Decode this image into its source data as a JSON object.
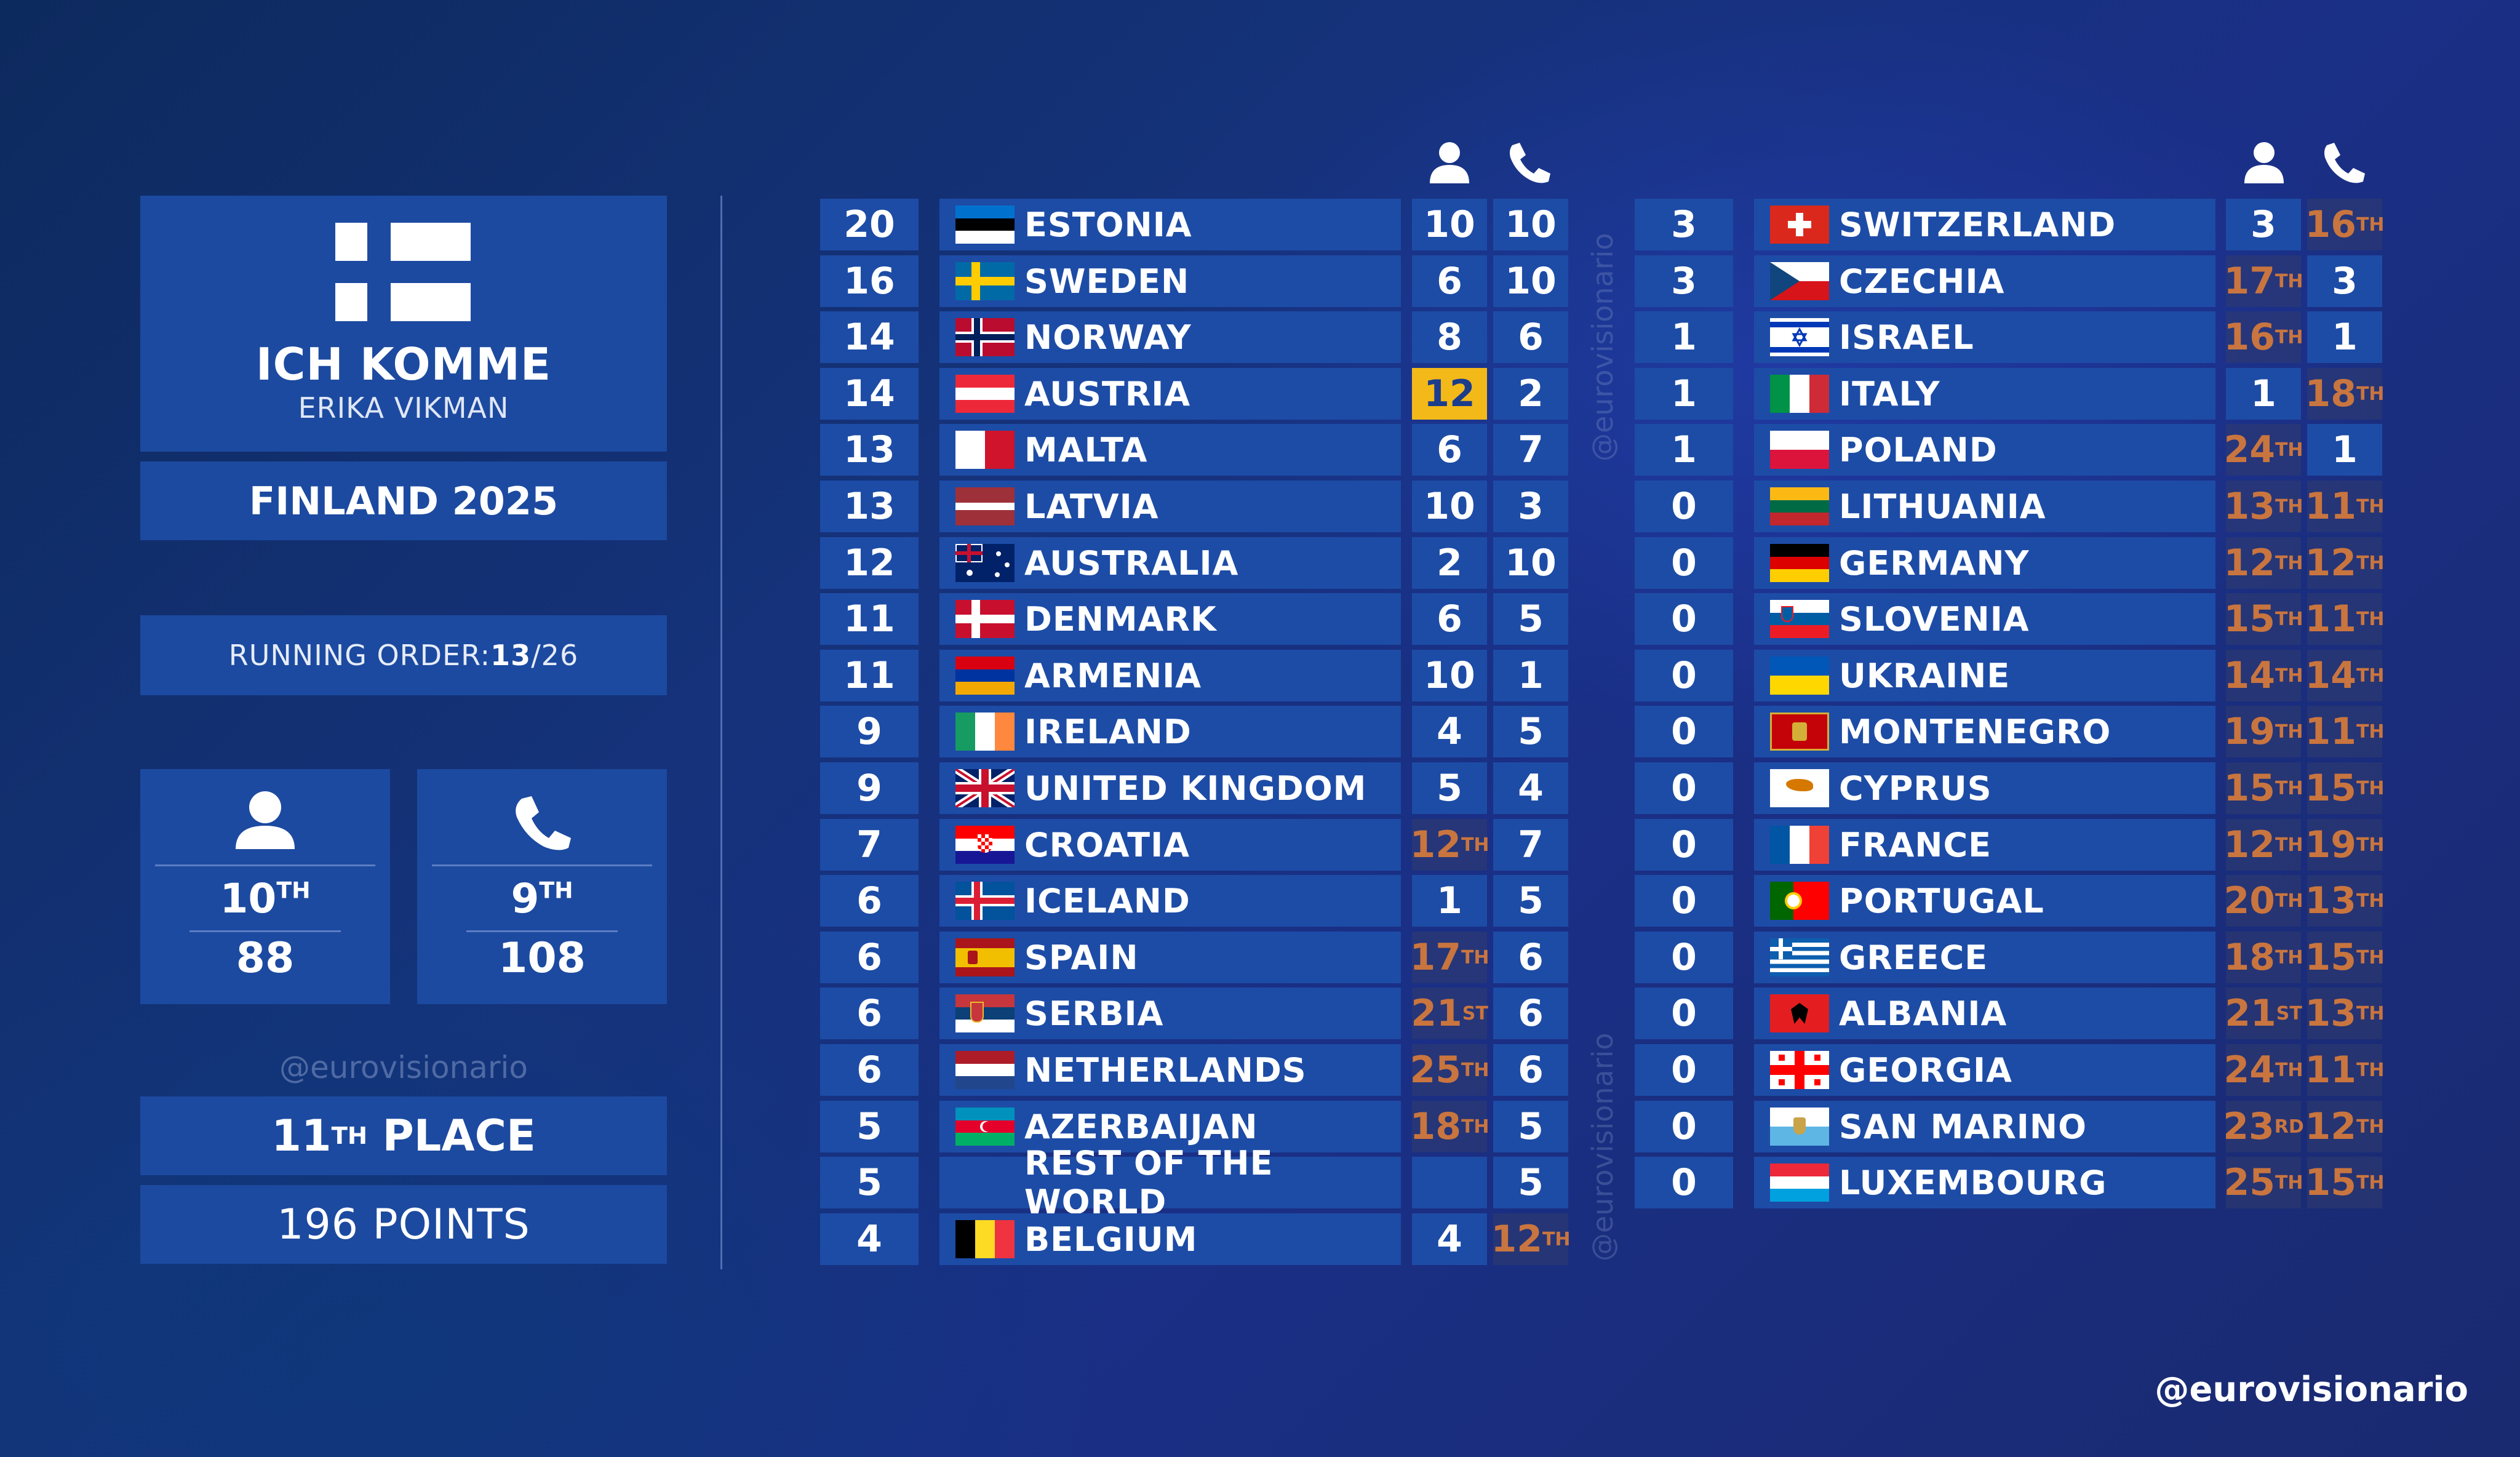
{
  "song": {
    "title": "ICH KOMME",
    "artist": "ERIKA VIKMAN",
    "country_year": "FINLAND 2025",
    "running_order_label": "RUNNING ORDER: ",
    "running_order_value": "13",
    "running_order_total": "/26"
  },
  "stats": {
    "jury": {
      "rank_num": "10",
      "rank_suffix": "TH",
      "points": "88"
    },
    "televote": {
      "rank_num": "9",
      "rank_suffix": "TH",
      "points": "108"
    }
  },
  "result": {
    "place_num": "11",
    "place_suffix": "TH",
    "place_word": "PLACE",
    "points": "196 POINTS"
  },
  "watermark": "@eurovisionario",
  "handle": "@eurovisionario",
  "icons": {
    "jury": "person-icon",
    "televote": "phone-icon"
  },
  "colors": {
    "panel": "#1d4ca6",
    "gold": "#f3b919",
    "rank_text": "#c9753f"
  },
  "left_table": [
    {
      "total": "20",
      "country": "ESTONIA",
      "flag": "estonia",
      "jury": "10",
      "tele": "10"
    },
    {
      "total": "16",
      "country": "SWEDEN",
      "flag": "sweden",
      "jury": "6",
      "tele": "10"
    },
    {
      "total": "14",
      "country": "NORWAY",
      "flag": "norway",
      "jury": "8",
      "tele": "6"
    },
    {
      "total": "14",
      "country": "AUSTRIA",
      "flag": "austria",
      "jury": "12",
      "tele": "2",
      "jury_gold": true
    },
    {
      "total": "13",
      "country": "MALTA",
      "flag": "malta",
      "jury": "6",
      "tele": "7"
    },
    {
      "total": "13",
      "country": "LATVIA",
      "flag": "latvia",
      "jury": "10",
      "tele": "3"
    },
    {
      "total": "12",
      "country": "AUSTRALIA",
      "flag": "australia",
      "jury": "2",
      "tele": "10"
    },
    {
      "total": "11",
      "country": "DENMARK",
      "flag": "denmark",
      "jury": "6",
      "tele": "5"
    },
    {
      "total": "11",
      "country": "ARMENIA",
      "flag": "armenia",
      "jury": "10",
      "tele": "1"
    },
    {
      "total": "9",
      "country": "IRELAND",
      "flag": "ireland",
      "jury": "4",
      "tele": "5"
    },
    {
      "total": "9",
      "country": "UNITED KINGDOM",
      "flag": "uk",
      "jury": "5",
      "tele": "4"
    },
    {
      "total": "7",
      "country": "CROATIA",
      "flag": "croatia",
      "jury": "12",
      "jury_suffix": "TH",
      "tele": "7"
    },
    {
      "total": "6",
      "country": "ICELAND",
      "flag": "iceland",
      "jury": "1",
      "tele": "5"
    },
    {
      "total": "6",
      "country": "SPAIN",
      "flag": "spain",
      "jury": "17",
      "jury_suffix": "TH",
      "tele": "6"
    },
    {
      "total": "6",
      "country": "SERBIA",
      "flag": "serbia",
      "jury": "21",
      "jury_suffix": "ST",
      "tele": "6"
    },
    {
      "total": "6",
      "country": "NETHERLANDS",
      "flag": "netherlands",
      "jury": "25",
      "jury_suffix": "TH",
      "tele": "6"
    },
    {
      "total": "5",
      "country": "AZERBAIJAN",
      "flag": "azerbaijan",
      "jury": "18",
      "jury_suffix": "TH",
      "tele": "5"
    },
    {
      "total": "5",
      "country": "REST OF THE WORLD",
      "flag": "",
      "jury": "",
      "tele": "5"
    },
    {
      "total": "4",
      "country": "BELGIUM",
      "flag": "belgium",
      "jury": "4",
      "tele": "12",
      "tele_suffix": "TH"
    }
  ],
  "right_table": [
    {
      "total": "3",
      "country": "SWITZERLAND",
      "flag": "switzerland",
      "jury": "3",
      "tele": "16",
      "tele_suffix": "TH"
    },
    {
      "total": "3",
      "country": "CZECHIA",
      "flag": "czechia",
      "jury": "17",
      "jury_suffix": "TH",
      "tele": "3"
    },
    {
      "total": "1",
      "country": "ISRAEL",
      "flag": "israel",
      "jury": "16",
      "jury_suffix": "TH",
      "tele": "1"
    },
    {
      "total": "1",
      "country": "ITALY",
      "flag": "italy",
      "jury": "1",
      "tele": "18",
      "tele_suffix": "TH"
    },
    {
      "total": "1",
      "country": "POLAND",
      "flag": "poland",
      "jury": "24",
      "jury_suffix": "TH",
      "tele": "1"
    },
    {
      "total": "0",
      "country": "LITHUANIA",
      "flag": "lithuania",
      "jury": "13",
      "jury_suffix": "TH",
      "tele": "11",
      "tele_suffix": "TH"
    },
    {
      "total": "0",
      "country": "GERMANY",
      "flag": "germany",
      "jury": "12",
      "jury_suffix": "TH",
      "tele": "12",
      "tele_suffix": "TH"
    },
    {
      "total": "0",
      "country": "SLOVENIA",
      "flag": "slovenia",
      "jury": "15",
      "jury_suffix": "TH",
      "tele": "11",
      "tele_suffix": "TH"
    },
    {
      "total": "0",
      "country": "UKRAINE",
      "flag": "ukraine",
      "jury": "14",
      "jury_suffix": "TH",
      "tele": "14",
      "tele_suffix": "TH"
    },
    {
      "total": "0",
      "country": "MONTENEGRO",
      "flag": "montenegro",
      "jury": "19",
      "jury_suffix": "TH",
      "tele": "11",
      "tele_suffix": "TH"
    },
    {
      "total": "0",
      "country": "CYPRUS",
      "flag": "cyprus",
      "jury": "15",
      "jury_suffix": "TH",
      "tele": "15",
      "tele_suffix": "TH"
    },
    {
      "total": "0",
      "country": "FRANCE",
      "flag": "france",
      "jury": "12",
      "jury_suffix": "TH",
      "tele": "19",
      "tele_suffix": "TH"
    },
    {
      "total": "0",
      "country": "PORTUGAL",
      "flag": "portugal",
      "jury": "20",
      "jury_suffix": "TH",
      "tele": "13",
      "tele_suffix": "TH"
    },
    {
      "total": "0",
      "country": "GREECE",
      "flag": "greece",
      "jury": "18",
      "jury_suffix": "TH",
      "tele": "15",
      "tele_suffix": "TH"
    },
    {
      "total": "0",
      "country": "ALBANIA",
      "flag": "albania",
      "jury": "21",
      "jury_suffix": "ST",
      "tele": "13",
      "tele_suffix": "TH"
    },
    {
      "total": "0",
      "country": "GEORGIA",
      "flag": "georgia",
      "jury": "24",
      "jury_suffix": "TH",
      "tele": "11",
      "tele_suffix": "TH"
    },
    {
      "total": "0",
      "country": "SAN MARINO",
      "flag": "sanmarino",
      "jury": "23",
      "jury_suffix": "RD",
      "tele": "12",
      "tele_suffix": "TH"
    },
    {
      "total": "0",
      "country": "LUXEMBOURG",
      "flag": "luxembourg",
      "jury": "25",
      "jury_suffix": "TH",
      "tele": "15",
      "tele_suffix": "TH"
    }
  ]
}
